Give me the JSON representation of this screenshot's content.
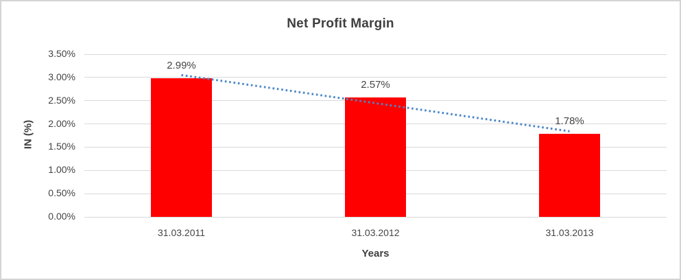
{
  "chart_data": {
    "type": "bar",
    "title": "Net Profit Margin",
    "xlabel": "Years",
    "ylabel": "IN (%)",
    "categories": [
      "31.03.2011",
      "31.03.2012",
      "31.03.2013"
    ],
    "values": [
      2.99,
      2.57,
      1.78
    ],
    "data_labels": [
      "2.99%",
      "2.57%",
      "1.78%"
    ],
    "ylim": [
      0,
      3.5
    ],
    "ytick_labels": [
      "0.00%",
      "0.50%",
      "1.00%",
      "1.50%",
      "2.00%",
      "2.50%",
      "3.00%",
      "3.50%"
    ],
    "grid": true,
    "legend": "none",
    "trendline": {
      "type": "linear",
      "style": "dotted"
    },
    "colors": {
      "bar": "#FF0000",
      "trendline": "#4A86C8",
      "gridline": "#D9D9D9",
      "title_text": "#3F3F3F",
      "label_text": "#444444",
      "border": "#D4D4D4",
      "background": "#FFFFFF"
    }
  }
}
